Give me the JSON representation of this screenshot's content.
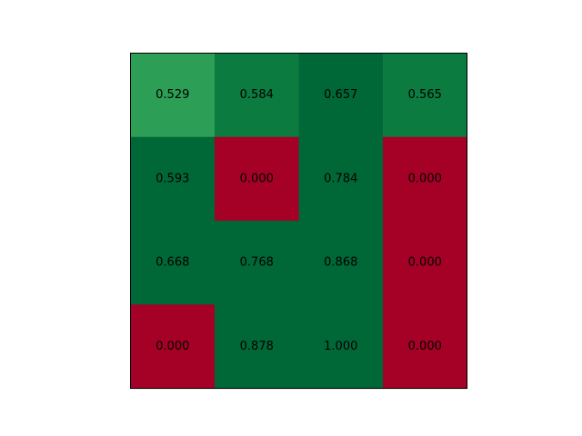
{
  "chart_data": {
    "type": "heatmap",
    "title": "",
    "xlabel": "",
    "ylabel": "",
    "grid": false,
    "colormap": "RdYlGn",
    "value_range": [
      0,
      1
    ],
    "rows": 4,
    "cols": 4,
    "values": [
      [
        0.529,
        0.584,
        0.657,
        0.565
      ],
      [
        0.593,
        0.0,
        0.784,
        0.0
      ],
      [
        0.668,
        0.768,
        0.868,
        0.0
      ],
      [
        0.0,
        0.878,
        1.0,
        0.0
      ]
    ],
    "labels": [
      [
        "0.529",
        "0.584",
        "0.657",
        "0.565"
      ],
      [
        "0.593",
        "0.000",
        "0.784",
        "0.000"
      ],
      [
        "0.668",
        "0.768",
        "0.868",
        "0.000"
      ],
      [
        "0.000",
        "0.878",
        "1.000",
        "0.000"
      ]
    ],
    "colors": {
      "zero": "#a50026",
      "low_green": "#2c9e55",
      "mid_green": "#0b7b3f",
      "dark_green": "#006837",
      "border": "#000000",
      "text": "#000000"
    }
  }
}
